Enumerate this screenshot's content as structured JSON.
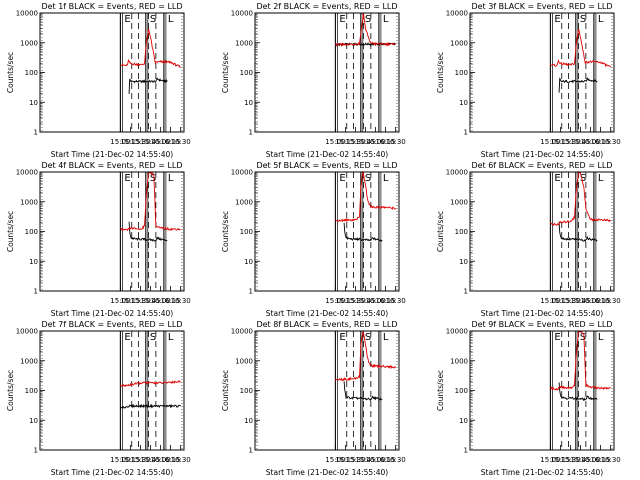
{
  "figure": {
    "x_axis_label": "Start Time (21-Dec-02 14:55:40)",
    "y_axis_label": "Counts/sec"
  },
  "colors": {
    "events": "#000000",
    "lld": "#e00000"
  },
  "chart_data": [
    {
      "type": "line",
      "title": "Det 1f BLACK = Events, RED = LLD",
      "xlabel": "Start Time (21-Dec-02 14:55:40)",
      "ylabel": "Counts/sec",
      "yscale": "log",
      "xlim": [
        "13:00",
        "16:35"
      ],
      "ylim": [
        1,
        10000
      ],
      "x_ticks": [
        "15:00",
        "15:15",
        "15:30",
        "15:45",
        "16:00",
        "16:15",
        "16:30"
      ],
      "y_ticks": [
        "1",
        "10",
        "100",
        "1000",
        "10000"
      ],
      "markers": [
        {
          "label": "E",
          "time": "15:00"
        },
        {
          "label": "S",
          "time": "15:38"
        },
        {
          "label": "L",
          "time": "16:05"
        }
      ],
      "gaps": [
        {
          "start": "15:17",
          "end": "15:27"
        },
        {
          "start": "15:42",
          "end": "15:53"
        }
      ],
      "series": [
        {
          "name": "Events",
          "color": "#000000",
          "x": [
            "15:13",
            "15:14",
            "15:16",
            "15:25",
            "15:32",
            "15:36",
            "15:53",
            "15:55",
            "16:00",
            "16:10"
          ],
          "y": [
            20,
            60,
            50,
            50,
            50,
            50,
            50,
            60,
            55,
            50
          ]
        },
        {
          "name": "LLD",
          "color": "#e00000",
          "x": [
            "15:00",
            "15:10",
            "15:12",
            "15:15",
            "15:30",
            "15:36",
            "15:39",
            "15:42",
            "15:45",
            "15:52",
            "16:00",
            "16:15",
            "16:30"
          ],
          "y": [
            180,
            170,
            250,
            200,
            180,
            200,
            1000,
            3000,
            1500,
            220,
            230,
            220,
            150
          ]
        }
      ]
    },
    {
      "type": "line",
      "title": "Det 2f BLACK = Events, RED = LLD",
      "xlabel": "Start Time (21-Dec-02 14:55:40)",
      "ylabel": "Counts/sec",
      "yscale": "log",
      "xlim": [
        "13:00",
        "16:35"
      ],
      "ylim": [
        1,
        10000
      ],
      "x_ticks": [
        "15:00",
        "15:15",
        "15:30",
        "15:45",
        "16:00",
        "16:15",
        "16:30"
      ],
      "y_ticks": [
        "1",
        "10",
        "100",
        "1000",
        "10000"
      ],
      "markers": [
        {
          "label": "E",
          "time": "15:00"
        },
        {
          "label": "S",
          "time": "15:38"
        },
        {
          "label": "L",
          "time": "16:05"
        }
      ],
      "gaps": [
        {
          "start": "15:17",
          "end": "15:27"
        },
        {
          "start": "15:42",
          "end": "15:53"
        }
      ],
      "series": [
        {
          "name": "Events",
          "color": "#000000",
          "x": [
            "15:00",
            "15:15",
            "15:30",
            "15:36",
            "15:53",
            "16:00",
            "16:15",
            "16:30"
          ],
          "y": [
            850,
            880,
            900,
            900,
            900,
            900,
            900,
            900
          ]
        },
        {
          "name": "LLD",
          "color": "#e00000",
          "x": [
            "15:00",
            "15:15",
            "15:30",
            "15:36",
            "15:39",
            "15:42",
            "15:45",
            "15:52",
            "16:00",
            "16:15",
            "16:30"
          ],
          "y": [
            850,
            880,
            900,
            950,
            3000,
            10000,
            3000,
            1000,
            920,
            900,
            900
          ]
        }
      ]
    },
    {
      "type": "line",
      "title": "Det 3f BLACK = Events, RED = LLD",
      "xlabel": "Start Time (21-Dec-02 14:55:40)",
      "ylabel": "Counts/sec",
      "yscale": "log",
      "xlim": [
        "13:00",
        "16:35"
      ],
      "ylim": [
        1,
        10000
      ],
      "x_ticks": [
        "15:00",
        "15:15",
        "15:30",
        "15:45",
        "16:00",
        "16:15",
        "16:30"
      ],
      "y_ticks": [
        "1",
        "10",
        "100",
        "1000",
        "10000"
      ],
      "markers": [
        {
          "label": "E",
          "time": "15:00"
        },
        {
          "label": "S",
          "time": "15:38"
        },
        {
          "label": "L",
          "time": "16:05"
        }
      ],
      "gaps": [
        {
          "start": "15:17",
          "end": "15:27"
        },
        {
          "start": "15:42",
          "end": "15:53"
        }
      ],
      "series": [
        {
          "name": "Events",
          "color": "#000000",
          "x": [
            "15:13",
            "15:14",
            "15:16",
            "15:25",
            "15:32",
            "15:36",
            "15:53",
            "15:55",
            "16:00",
            "16:10"
          ],
          "y": [
            20,
            60,
            50,
            50,
            50,
            50,
            50,
            60,
            55,
            50
          ]
        },
        {
          "name": "LLD",
          "color": "#e00000",
          "x": [
            "15:00",
            "15:10",
            "15:12",
            "15:15",
            "15:30",
            "15:36",
            "15:39",
            "15:42",
            "15:45",
            "15:52",
            "16:00",
            "16:15",
            "16:30"
          ],
          "y": [
            180,
            170,
            250,
            200,
            180,
            200,
            1000,
            3000,
            1500,
            220,
            230,
            220,
            150
          ]
        }
      ]
    },
    {
      "type": "line",
      "title": "Det 4f BLACK = Events, RED = LLD",
      "xlabel": "Start Time (21-Dec-02 14:55:40)",
      "ylabel": "Counts/sec",
      "yscale": "log",
      "xlim": [
        "13:00",
        "16:35"
      ],
      "ylim": [
        1,
        10000
      ],
      "x_ticks": [
        "15:00",
        "15:15",
        "15:30",
        "15:45",
        "16:00",
        "16:15",
        "16:30"
      ],
      "y_ticks": [
        "1",
        "10",
        "100",
        "1000",
        "10000"
      ],
      "markers": [
        {
          "label": "E",
          "time": "15:00"
        },
        {
          "label": "S",
          "time": "15:38"
        },
        {
          "label": "L",
          "time": "16:05"
        }
      ],
      "gaps": [
        {
          "start": "15:17",
          "end": "15:27"
        },
        {
          "start": "15:42",
          "end": "15:53"
        }
      ],
      "series": [
        {
          "name": "Events",
          "color": "#000000",
          "x": [
            "15:13",
            "15:14",
            "15:16",
            "15:25",
            "15:32",
            "15:36",
            "15:53",
            "15:55",
            "16:00",
            "16:10"
          ],
          "y": [
            200,
            100,
            60,
            55,
            55,
            55,
            50,
            60,
            55,
            50
          ]
        },
        {
          "name": "LLD",
          "color": "#e00000",
          "x": [
            "15:00",
            "15:10",
            "15:15",
            "15:30",
            "15:36",
            "15:39",
            "15:42",
            "15:45",
            "15:50",
            "15:53",
            "16:00",
            "16:15",
            "16:30"
          ],
          "y": [
            120,
            110,
            130,
            120,
            150,
            2000,
            9000,
            10000,
            8000,
            150,
            130,
            120,
            120
          ]
        }
      ]
    },
    {
      "type": "line",
      "title": "Det 5f BLACK = Events, RED = LLD",
      "xlabel": "Start Time (21-Dec-02 14:55:40)",
      "ylabel": "Counts/sec",
      "yscale": "log",
      "xlim": [
        "13:00",
        "16:35"
      ],
      "ylim": [
        1,
        10000
      ],
      "x_ticks": [
        "15:00",
        "15:15",
        "15:30",
        "15:45",
        "16:00",
        "16:15",
        "16:30"
      ],
      "y_ticks": [
        "1",
        "10",
        "100",
        "1000",
        "10000"
      ],
      "markers": [
        {
          "label": "E",
          "time": "15:00"
        },
        {
          "label": "S",
          "time": "15:38"
        },
        {
          "label": "L",
          "time": "16:05"
        }
      ],
      "gaps": [
        {
          "start": "15:17",
          "end": "15:27"
        },
        {
          "start": "15:42",
          "end": "15:53"
        }
      ],
      "series": [
        {
          "name": "Events",
          "color": "#000000",
          "x": [
            "15:13",
            "15:14",
            "15:16",
            "15:25",
            "15:32",
            "15:36",
            "15:53",
            "15:55",
            "16:00",
            "16:10"
          ],
          "y": [
            200,
            100,
            60,
            55,
            55,
            55,
            50,
            60,
            55,
            50
          ]
        },
        {
          "name": "LLD",
          "color": "#e00000",
          "x": [
            "15:00",
            "15:15",
            "15:30",
            "15:36",
            "15:38",
            "15:41",
            "15:44",
            "15:48",
            "15:52",
            "16:00",
            "16:15",
            "16:30"
          ],
          "y": [
            230,
            240,
            250,
            300,
            3000,
            10000,
            5000,
            1200,
            700,
            650,
            650,
            600
          ]
        }
      ]
    },
    {
      "type": "line",
      "title": "Det 6f BLACK = Events, RED = LLD",
      "xlabel": "Start Time (21-Dec-02 14:55:40)",
      "ylabel": "Counts/sec",
      "yscale": "log",
      "xlim": [
        "13:00",
        "16:35"
      ],
      "ylim": [
        1,
        10000
      ],
      "x_ticks": [
        "15:00",
        "15:15",
        "15:30",
        "15:45",
        "16:00",
        "16:15",
        "16:30"
      ],
      "y_ticks": [
        "1",
        "10",
        "100",
        "1000",
        "10000"
      ],
      "markers": [
        {
          "label": "E",
          "time": "15:00"
        },
        {
          "label": "S",
          "time": "15:38"
        },
        {
          "label": "L",
          "time": "16:05"
        }
      ],
      "gaps": [
        {
          "start": "15:17",
          "end": "15:27"
        },
        {
          "start": "15:42",
          "end": "15:53"
        }
      ],
      "series": [
        {
          "name": "Events",
          "color": "#000000",
          "x": [
            "15:13",
            "15:14",
            "15:16",
            "15:25",
            "15:32",
            "15:36",
            "15:53",
            "15:55",
            "16:00",
            "16:10"
          ],
          "y": [
            200,
            100,
            60,
            55,
            55,
            55,
            50,
            60,
            55,
            50
          ]
        },
        {
          "name": "LLD",
          "color": "#e00000",
          "x": [
            "15:00",
            "15:10",
            "15:15",
            "15:30",
            "15:36",
            "15:39",
            "15:42",
            "15:45",
            "15:50",
            "15:53",
            "16:00",
            "16:15",
            "16:30"
          ],
          "y": [
            180,
            170,
            200,
            220,
            300,
            3000,
            10000,
            9000,
            3000,
            600,
            250,
            250,
            230
          ]
        }
      ]
    },
    {
      "type": "line",
      "title": "Det 7f BLACK = Events, RED = LLD",
      "xlabel": "Start Time (21-Dec-02 14:55:40)",
      "ylabel": "Counts/sec",
      "yscale": "log",
      "xlim": [
        "13:00",
        "16:35"
      ],
      "ylim": [
        1,
        10000
      ],
      "x_ticks": [
        "15:00",
        "15:15",
        "15:30",
        "15:45",
        "16:00",
        "16:15",
        "16:30"
      ],
      "y_ticks": [
        "1",
        "10",
        "100",
        "1000",
        "10000"
      ],
      "markers": [
        {
          "label": "E",
          "time": "15:00"
        },
        {
          "label": "S",
          "time": "15:38"
        },
        {
          "label": "L",
          "time": "16:05"
        }
      ],
      "gaps": [
        {
          "start": "15:17",
          "end": "15:27"
        },
        {
          "start": "15:42",
          "end": "15:53"
        }
      ],
      "series": [
        {
          "name": "Events",
          "color": "#000000",
          "x": [
            "15:00",
            "15:13",
            "15:16",
            "15:25",
            "15:32",
            "15:36",
            "15:53",
            "16:00",
            "16:15",
            "16:30"
          ],
          "y": [
            25,
            30,
            30,
            30,
            30,
            30,
            30,
            30,
            30,
            30
          ]
        },
        {
          "name": "LLD",
          "color": "#e00000",
          "x": [
            "15:00",
            "15:13",
            "15:16",
            "15:25",
            "15:32",
            "15:36",
            "15:53",
            "16:00",
            "16:15",
            "16:30"
          ],
          "y": [
            140,
            150,
            160,
            170,
            180,
            180,
            180,
            180,
            190,
            200
          ]
        }
      ]
    },
    {
      "type": "line",
      "title": "Det 8f BLACK = Events, RED = LLD",
      "xlabel": "Start Time (21-Dec-02 14:55:40)",
      "ylabel": "Counts/sec",
      "yscale": "log",
      "xlim": [
        "13:00",
        "16:35"
      ],
      "ylim": [
        1,
        10000
      ],
      "x_ticks": [
        "15:00",
        "15:15",
        "15:30",
        "15:45",
        "16:00",
        "16:15",
        "16:30"
      ],
      "y_ticks": [
        "1",
        "10",
        "100",
        "1000",
        "10000"
      ],
      "markers": [
        {
          "label": "E",
          "time": "15:00"
        },
        {
          "label": "S",
          "time": "15:38"
        },
        {
          "label": "L",
          "time": "16:05"
        }
      ],
      "gaps": [
        {
          "start": "15:17",
          "end": "15:27"
        },
        {
          "start": "15:42",
          "end": "15:53"
        }
      ],
      "series": [
        {
          "name": "Events",
          "color": "#000000",
          "x": [
            "15:13",
            "15:14",
            "15:16",
            "15:25",
            "15:32",
            "15:36",
            "15:53",
            "15:55",
            "16:00",
            "16:10"
          ],
          "y": [
            200,
            100,
            60,
            55,
            55,
            55,
            50,
            60,
            55,
            50
          ]
        },
        {
          "name": "LLD",
          "color": "#e00000",
          "x": [
            "15:00",
            "15:15",
            "15:30",
            "15:36",
            "15:38",
            "15:41",
            "15:44",
            "15:48",
            "15:52",
            "16:00",
            "16:15",
            "16:30"
          ],
          "y": [
            230,
            240,
            250,
            300,
            3000,
            10000,
            5000,
            1200,
            700,
            650,
            650,
            600
          ]
        }
      ]
    },
    {
      "type": "line",
      "title": "Det 9f BLACK = Events, RED = LLD",
      "xlabel": "Start Time (21-Dec-02 14:55:40)",
      "ylabel": "Counts/sec",
      "yscale": "log",
      "xlim": [
        "13:00",
        "16:35"
      ],
      "ylim": [
        1,
        10000
      ],
      "x_ticks": [
        "15:00",
        "15:15",
        "15:30",
        "15:45",
        "16:00",
        "16:15",
        "16:30"
      ],
      "y_ticks": [
        "1",
        "10",
        "100",
        "1000",
        "10000"
      ],
      "markers": [
        {
          "label": "E",
          "time": "15:00"
        },
        {
          "label": "S",
          "time": "15:38"
        },
        {
          "label": "L",
          "time": "16:05"
        }
      ],
      "gaps": [
        {
          "start": "15:17",
          "end": "15:27"
        },
        {
          "start": "15:42",
          "end": "15:53"
        }
      ],
      "series": [
        {
          "name": "Events",
          "color": "#000000",
          "x": [
            "15:13",
            "15:14",
            "15:16",
            "15:25",
            "15:32",
            "15:36",
            "15:53",
            "15:55",
            "16:00",
            "16:10"
          ],
          "y": [
            200,
            100,
            60,
            55,
            55,
            55,
            50,
            60,
            55,
            50
          ]
        },
        {
          "name": "LLD",
          "color": "#e00000",
          "x": [
            "15:00",
            "15:10",
            "15:15",
            "15:30",
            "15:36",
            "15:39",
            "15:42",
            "15:45",
            "15:50",
            "15:53",
            "16:00",
            "16:15",
            "16:30"
          ],
          "y": [
            120,
            110,
            130,
            120,
            150,
            2000,
            9000,
            10000,
            8000,
            150,
            130,
            120,
            120
          ]
        }
      ]
    }
  ]
}
